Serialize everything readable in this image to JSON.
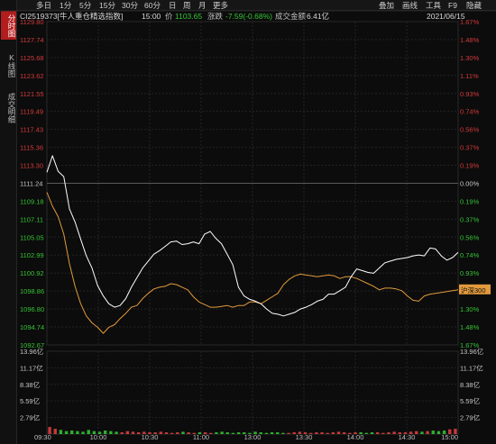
{
  "nav": {
    "tabs": [
      {
        "label": "分时图",
        "active": true
      },
      {
        "label": "K线图",
        "active": false
      },
      {
        "label": "成交明细",
        "active": false
      }
    ]
  },
  "toolbar": {
    "left_items": [
      "多日",
      "1分",
      "5分",
      "15分",
      "30分",
      "60分",
      "日",
      "周",
      "月",
      "更多"
    ],
    "right_items": [
      "叠加",
      "画线",
      "工具",
      "F9",
      "隐藏"
    ]
  },
  "info": {
    "code": "CI2519373[牛人重仓精选指数]",
    "time": "15:00",
    "price_label": "价",
    "price": "1103.65",
    "change_label": "涨跌",
    "change": "-7.59(-0.68%)",
    "amount_label": "成交金额",
    "amount": "6.41亿",
    "date": "2021/06/15"
  },
  "chart_data": {
    "type": "line",
    "prev_close": 1111.24,
    "y_left_ticks": [
      "1129.80",
      "1127.74",
      "1125.68",
      "1123.62",
      "1121.55",
      "1119.49",
      "1117.43",
      "1115.36",
      "1113.30",
      "1111.24",
      "1109.18",
      "1107.11",
      "1105.05",
      "1102.99",
      "1100.92",
      "1098.86",
      "1096.80",
      "1094.74",
      "1092.67"
    ],
    "y_right_ticks": [
      "1.67%",
      "1.48%",
      "1.30%",
      "1.11%",
      "0.93%",
      "0.74%",
      "0.56%",
      "0.37%",
      "0.19%",
      "0.00%",
      "0.19%",
      "0.37%",
      "0.56%",
      "0.74%",
      "0.93%",
      "1.11%",
      "1.30%",
      "1.48%",
      "1.67%"
    ],
    "volume_ticks": [
      "13.96亿",
      "11.17亿",
      "8.38亿",
      "5.59亿",
      "2.79亿"
    ],
    "x_ticks": [
      "09:30",
      "10:00",
      "10:30",
      "11:00",
      "13:00",
      "13:30",
      "14:00",
      "14:30",
      "15:00"
    ],
    "overlay_label": "沪深300",
    "series": [
      {
        "name": "CI2519373[牛人重仓精选指数]",
        "color": "#ffffff",
        "values": [
          1112.5,
          1114.4,
          1112.6,
          1112.0,
          1108.3,
          1106.8,
          1104.8,
          1102.9,
          1101.5,
          1099.5,
          1098.3,
          1097.4,
          1097.0,
          1097.2,
          1098.0,
          1099.3,
          1100.4,
          1101.5,
          1102.3,
          1103.1,
          1103.5,
          1104.0,
          1104.5,
          1104.6,
          1104.2,
          1104.3,
          1104.5,
          1104.3,
          1105.4,
          1105.7,
          1104.9,
          1104.3,
          1103.1,
          1101.9,
          1099.3,
          1098.3,
          1097.9,
          1097.7,
          1097.4,
          1096.8,
          1096.3,
          1096.2,
          1096.0,
          1096.2,
          1096.4,
          1096.8,
          1097.0,
          1097.3,
          1097.7,
          1097.9,
          1098.5,
          1098.5,
          1098.9,
          1099.3,
          1100.5,
          1101.4,
          1101.2,
          1101.0,
          1100.9,
          1101.5,
          1102.1,
          1102.3,
          1102.5,
          1102.6,
          1102.7,
          1102.9,
          1103.0,
          1102.9,
          1103.8,
          1103.7,
          1102.9,
          1102.4,
          1102.7,
          1103.3
        ]
      },
      {
        "name": "沪深300",
        "color": "#e29a3c",
        "values": [
          1110.2,
          1108.6,
          1107.4,
          1105.4,
          1102.0,
          1099.4,
          1097.4,
          1096.0,
          1095.2,
          1094.7,
          1094.0,
          1094.7,
          1095.0,
          1095.7,
          1096.3,
          1097.0,
          1097.2,
          1098.0,
          1098.6,
          1099.1,
          1099.3,
          1099.4,
          1099.7,
          1099.6,
          1099.3,
          1099.0,
          1098.2,
          1097.6,
          1097.3,
          1097.0,
          1097.0,
          1097.1,
          1097.2,
          1097.0,
          1097.2,
          1097.2,
          1097.6,
          1097.6,
          1097.4,
          1097.8,
          1098.2,
          1098.6,
          1099.6,
          1100.2,
          1100.6,
          1100.8,
          1100.7,
          1100.6,
          1100.5,
          1100.6,
          1100.7,
          1100.6,
          1100.3,
          1100.5,
          1100.5,
          1100.3,
          1100.0,
          1099.7,
          1099.4,
          1099.0,
          1099.2,
          1099.2,
          1099.1,
          1098.9,
          1098.3,
          1097.8,
          1097.7,
          1098.3,
          1098.5,
          1098.6,
          1098.7,
          1098.8,
          1098.9,
          1099.0
        ]
      }
    ],
    "volume": [
      1.2,
      0.9,
      0.7,
      0.5,
      0.6,
      0.5,
      0.4,
      0.7,
      0.5,
      0.4,
      0.6,
      0.5,
      0.4,
      0.3,
      0.5,
      0.4,
      0.3,
      0.4,
      0.3,
      0.3,
      0.4,
      0.3,
      0.2,
      0.3,
      0.4,
      0.3,
      0.2,
      0.3,
      0.3,
      0.2,
      0.3,
      0.4,
      0.3,
      0.2,
      0.3,
      0.3,
      0.2,
      0.4,
      0.3,
      0.2,
      0.3,
      0.3,
      0.2,
      0.2,
      0.3,
      0.4,
      0.3,
      0.2,
      0.3,
      0.3,
      0.2,
      0.3,
      0.4,
      0.3,
      0.2,
      0.3,
      0.3,
      0.2,
      0.3,
      0.3,
      0.2,
      0.3,
      0.4,
      0.3,
      0.3,
      0.4,
      0.5,
      0.4,
      0.5,
      0.6,
      0.5,
      0.6,
      0.8,
      0.9
    ],
    "volume_max": 13.96
  }
}
